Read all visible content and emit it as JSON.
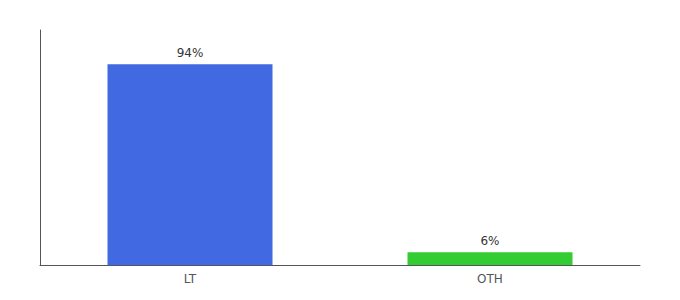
{
  "chart_data": {
    "type": "bar",
    "categories": [
      "LT",
      "OTH"
    ],
    "values": [
      94,
      6
    ],
    "value_labels": [
      "94%",
      "6%"
    ],
    "colors": [
      "#4169e1",
      "#33cc33"
    ],
    "ylim": [
      0,
      110
    ],
    "grid": false,
    "data_labels": true,
    "tick_labels": "x"
  }
}
